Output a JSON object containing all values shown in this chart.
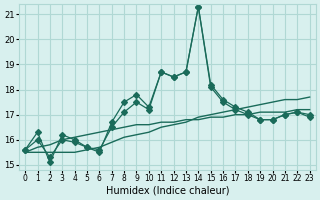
{
  "xlabel": "Humidex (Indice chaleur)",
  "ylabel": "",
  "xlim": [
    -0.5,
    23.5
  ],
  "ylim": [
    14.8,
    21.4
  ],
  "yticks": [
    15,
    16,
    17,
    18,
    19,
    20,
    21
  ],
  "xtick_labels": [
    "0",
    "1",
    "2",
    "3",
    "4",
    "5",
    "6",
    "7",
    "8",
    "9",
    "10",
    "11",
    "12",
    "13",
    "14",
    "15",
    "16",
    "17",
    "18",
    "19",
    "20",
    "21",
    "22",
    "23"
  ],
  "background_color": "#d8f0ee",
  "grid_color": "#b0d8d4",
  "line_color": "#1a6b5a",
  "series1": [
    15.6,
    16.3,
    15.1,
    16.2,
    16.0,
    15.7,
    15.5,
    16.7,
    17.5,
    17.8,
    17.3,
    18.7,
    18.5,
    18.7,
    21.3,
    18.2,
    17.6,
    17.3,
    17.1,
    16.8,
    16.8,
    17.0,
    17.1,
    17.0
  ],
  "series3": [
    15.5,
    15.5,
    15.5,
    15.5,
    15.5,
    15.6,
    15.7,
    15.9,
    16.1,
    16.2,
    16.3,
    16.5,
    16.6,
    16.7,
    16.9,
    17.0,
    17.1,
    17.2,
    17.3,
    17.4,
    17.5,
    17.6,
    17.6,
    17.7
  ],
  "series4": [
    15.5,
    15.7,
    15.8,
    16.0,
    16.1,
    16.2,
    16.3,
    16.4,
    16.5,
    16.6,
    16.6,
    16.7,
    16.7,
    16.8,
    16.8,
    16.9,
    16.9,
    17.0,
    17.0,
    17.1,
    17.1,
    17.1,
    17.2,
    17.2
  ],
  "series5": [
    15.6,
    16.0,
    15.3,
    16.0,
    15.9,
    15.7,
    15.6,
    16.5,
    17.1,
    17.5,
    17.2,
    18.7,
    18.5,
    18.7,
    21.3,
    18.1,
    17.5,
    17.2,
    17.0,
    16.8,
    16.8,
    17.0,
    17.1,
    16.9
  ]
}
